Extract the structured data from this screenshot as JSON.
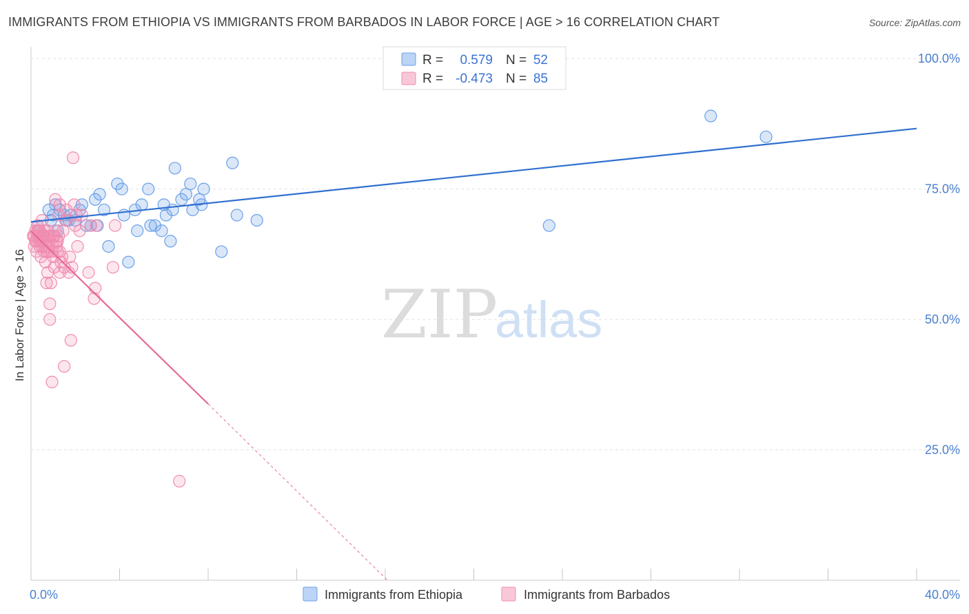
{
  "title": "IMMIGRANTS FROM ETHIOPIA VS IMMIGRANTS FROM BARBADOS IN LABOR FORCE | AGE > 16 CORRELATION CHART",
  "source": "Source: ZipAtlas.com",
  "watermark": {
    "zip": "ZIP",
    "atlas": "atlas"
  },
  "chart_data": {
    "type": "scatter",
    "ylabel": "In Labor Force | Age > 16",
    "xlim": [
      0,
      40
    ],
    "ylim": [
      0,
      102
    ],
    "x_tick_labels": [
      {
        "value": 0,
        "label": "0.0%"
      },
      {
        "value": 40,
        "label": "40.0%"
      }
    ],
    "y_tick_labels": [
      {
        "value": 25,
        "label": "25.0%"
      },
      {
        "value": 50,
        "label": "50.0%"
      },
      {
        "value": 75,
        "label": "75.0%"
      },
      {
        "value": 100,
        "label": "100.0%"
      }
    ],
    "grid": "horizontal dashed",
    "legend_placement": "top-center",
    "stats": [
      {
        "r_label": "R =",
        "r": "0.579",
        "n_label": "N =",
        "n": "52"
      },
      {
        "r_label": "R =",
        "r": "-0.473",
        "n_label": "N =",
        "n": "85"
      }
    ],
    "series": [
      {
        "name": "Immigrants from Ethiopia",
        "color": "#6aa0e8",
        "line_color": "#2f6fcf",
        "trend": {
          "x0": 0,
          "y0": 68.7,
          "x1": 40,
          "y1": 86.6
        },
        "points": [
          [
            0.3,
            68
          ],
          [
            0.5,
            66
          ],
          [
            0.8,
            71
          ],
          [
            1.0,
            70
          ],
          [
            1.1,
            72
          ],
          [
            1.2,
            67
          ],
          [
            1.3,
            71
          ],
          [
            1.5,
            70
          ],
          [
            1.6,
            69
          ],
          [
            1.8,
            70
          ],
          [
            2.0,
            69
          ],
          [
            2.3,
            72
          ],
          [
            2.5,
            68
          ],
          [
            2.9,
            73
          ],
          [
            3.1,
            74
          ],
          [
            3.3,
            71
          ],
          [
            3.5,
            64
          ],
          [
            3.9,
            76
          ],
          [
            4.1,
            75
          ],
          [
            4.2,
            70
          ],
          [
            4.4,
            61
          ],
          [
            4.7,
            71
          ],
          [
            4.8,
            67
          ],
          [
            5.0,
            72
          ],
          [
            5.3,
            75
          ],
          [
            5.4,
            68
          ],
          [
            5.6,
            68
          ],
          [
            5.9,
            67
          ],
          [
            6.1,
            70
          ],
          [
            6.3,
            65
          ],
          [
            6.4,
            71
          ],
          [
            6.5,
            79
          ],
          [
            6.8,
            73
          ],
          [
            7.0,
            74
          ],
          [
            7.2,
            76
          ],
          [
            7.3,
            71
          ],
          [
            7.6,
            73
          ],
          [
            7.7,
            72
          ],
          [
            7.8,
            75
          ],
          [
            8.6,
            63
          ],
          [
            9.1,
            80
          ],
          [
            9.3,
            70
          ],
          [
            10.2,
            69
          ],
          [
            23.4,
            68
          ],
          [
            30.7,
            89
          ],
          [
            33.2,
            85
          ],
          [
            1.7,
            69
          ],
          [
            2.2,
            71
          ],
          [
            0.9,
            69
          ],
          [
            3.0,
            68
          ],
          [
            6.0,
            72
          ],
          [
            2.7,
            68
          ]
        ]
      },
      {
        "name": "Immigrants from Barbados",
        "color": "#f08cb0",
        "line_color": "#e56a98",
        "trend": {
          "x0": 0,
          "y0": 66.9,
          "x1": 8,
          "y1": 33.8
        },
        "trend_ext": {
          "x0": 8,
          "y0": 33.8,
          "x1": 16.1,
          "y1": 0
        },
        "points": [
          [
            0.1,
            66
          ],
          [
            0.15,
            64
          ],
          [
            0.2,
            67
          ],
          [
            0.2,
            65
          ],
          [
            0.25,
            63
          ],
          [
            0.3,
            68
          ],
          [
            0.3,
            66
          ],
          [
            0.35,
            65
          ],
          [
            0.4,
            67
          ],
          [
            0.4,
            64
          ],
          [
            0.45,
            62
          ],
          [
            0.5,
            69
          ],
          [
            0.5,
            66
          ],
          [
            0.55,
            65
          ],
          [
            0.6,
            63
          ],
          [
            0.6,
            67
          ],
          [
            0.65,
            61
          ],
          [
            0.7,
            65
          ],
          [
            0.7,
            57
          ],
          [
            0.75,
            59
          ],
          [
            0.8,
            66
          ],
          [
            0.8,
            63
          ],
          [
            0.85,
            53
          ],
          [
            0.85,
            50
          ],
          [
            0.9,
            57
          ],
          [
            0.95,
            38
          ],
          [
            1.0,
            66
          ],
          [
            1.0,
            62
          ],
          [
            1.05,
            60
          ],
          [
            1.1,
            67
          ],
          [
            1.1,
            73
          ],
          [
            1.15,
            65
          ],
          [
            1.2,
            63
          ],
          [
            1.25,
            70
          ],
          [
            1.3,
            72
          ],
          [
            1.3,
            59
          ],
          [
            1.35,
            61
          ],
          [
            1.4,
            62
          ],
          [
            1.45,
            67
          ],
          [
            1.5,
            41
          ],
          [
            1.5,
            60
          ],
          [
            1.55,
            69
          ],
          [
            1.6,
            71
          ],
          [
            1.7,
            59
          ],
          [
            1.75,
            62
          ],
          [
            1.8,
            46
          ],
          [
            1.85,
            60
          ],
          [
            1.9,
            81
          ],
          [
            1.95,
            72
          ],
          [
            2.0,
            68
          ],
          [
            2.05,
            70
          ],
          [
            2.1,
            64
          ],
          [
            2.2,
            67
          ],
          [
            2.3,
            70
          ],
          [
            2.6,
            59
          ],
          [
            2.7,
            68
          ],
          [
            2.85,
            54
          ],
          [
            2.9,
            56
          ],
          [
            2.95,
            68
          ],
          [
            3.7,
            60
          ],
          [
            3.8,
            68
          ],
          [
            6.7,
            19
          ],
          [
            0.2,
            65
          ],
          [
            0.3,
            67
          ],
          [
            0.4,
            66
          ],
          [
            0.5,
            64
          ],
          [
            0.6,
            66
          ],
          [
            0.7,
            63
          ],
          [
            0.8,
            64
          ],
          [
            0.9,
            66
          ],
          [
            1.0,
            64
          ],
          [
            1.2,
            65
          ],
          [
            1.3,
            63
          ],
          [
            0.15,
            66
          ],
          [
            0.25,
            65
          ],
          [
            0.35,
            67
          ],
          [
            0.45,
            65
          ],
          [
            0.55,
            66
          ],
          [
            0.65,
            64
          ],
          [
            0.75,
            67
          ],
          [
            0.85,
            65
          ],
          [
            0.95,
            63
          ],
          [
            1.05,
            66
          ],
          [
            1.15,
            64
          ],
          [
            1.25,
            66
          ]
        ]
      }
    ]
  }
}
